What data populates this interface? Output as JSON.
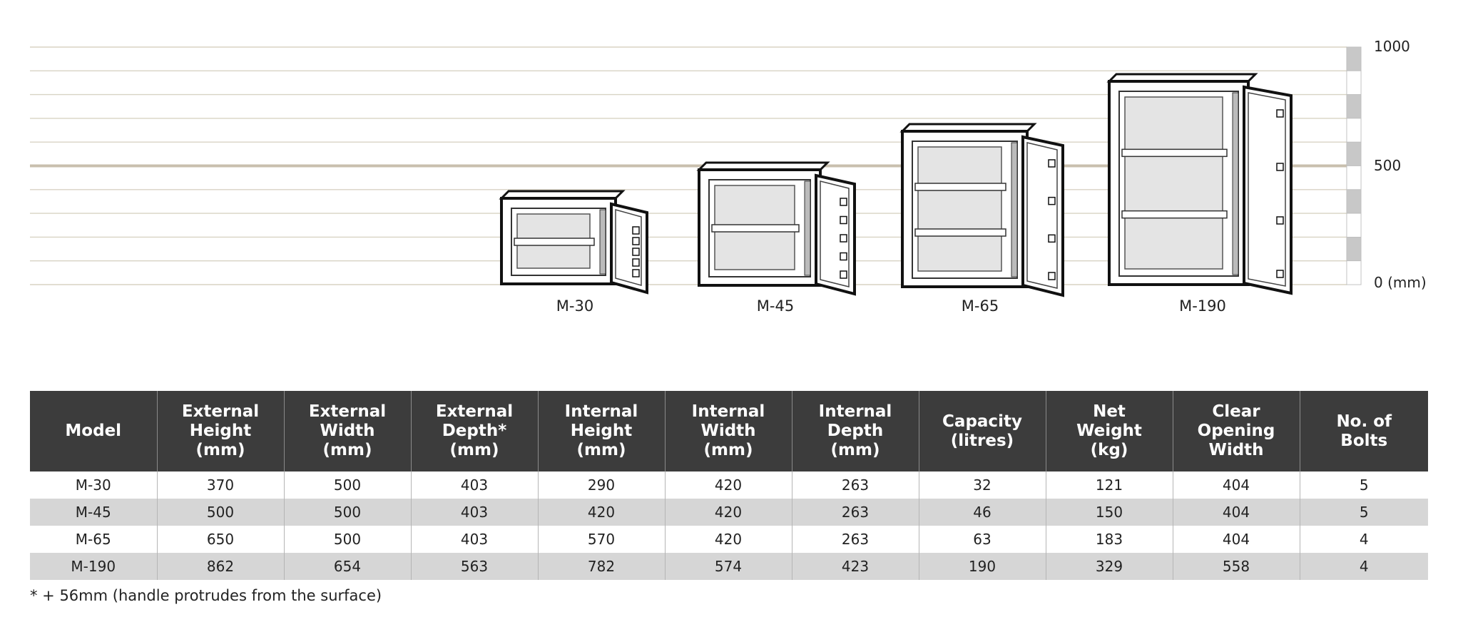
{
  "scale": {
    "labels": [
      "1000",
      "500",
      "0 (mm)"
    ]
  },
  "models_chart": [
    {
      "label": "M-30"
    },
    {
      "label": "M-45"
    },
    {
      "label": "M-65"
    },
    {
      "label": "M-190"
    }
  ],
  "table": {
    "headers": [
      "Model",
      "External\nHeight\n(mm)",
      "External\nWidth\n(mm)",
      "External\nDepth*\n(mm)",
      "Internal\nHeight\n(mm)",
      "Internal\nWidth\n(mm)",
      "Internal\nDepth\n(mm)",
      "Capacity\n(litres)",
      "Net\nWeight\n(kg)",
      "Clear\nOpening\nWidth",
      "No. of\nBolts"
    ],
    "rows": [
      [
        "M-30",
        "370",
        "500",
        "403",
        "290",
        "420",
        "263",
        "32",
        "121",
        "404",
        "5"
      ],
      [
        "M-45",
        "500",
        "500",
        "403",
        "420",
        "420",
        "263",
        "46",
        "150",
        "404",
        "5"
      ],
      [
        "M-65",
        "650",
        "500",
        "403",
        "570",
        "420",
        "263",
        "63",
        "183",
        "404",
        "4"
      ],
      [
        "M-190",
        "862",
        "654",
        "563",
        "782",
        "574",
        "423",
        "190",
        "329",
        "558",
        "4"
      ]
    ]
  },
  "footnote": "* + 56mm (handle protrudes from the surface)"
}
